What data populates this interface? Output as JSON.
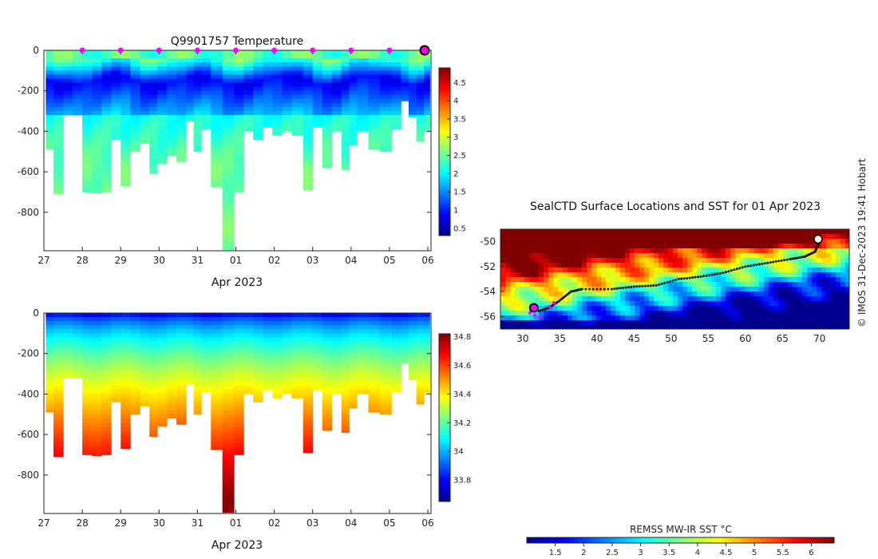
{
  "colors": {
    "temp_scale": [
      "#00008f",
      "#0000ff",
      "#0080ff",
      "#00ffff",
      "#80ff80",
      "#ffff00",
      "#ff8000",
      "#ff0000",
      "#800000"
    ],
    "sst_scale": [
      "#00008f",
      "#0000ff",
      "#0080ff",
      "#00ffff",
      "#80ff80",
      "#ffff00",
      "#ff8000",
      "#ff0000",
      "#800000"
    ],
    "profile_marker": "#ff00ff",
    "track": "#111111"
  },
  "credit": "© IMOS 31-Dec-2023 19:41 Hobart",
  "chart_data": [
    {
      "type": "heatmap",
      "id": "temperature-section",
      "title": "Q9901757  Temperature",
      "xlabel": "Apr 2023",
      "ylabel": "",
      "x_tick_labels": [
        "27",
        "28",
        "29",
        "30",
        "31",
        "01",
        "02",
        "03",
        "04",
        "05",
        "06"
      ],
      "y_ticks": [
        0,
        -200,
        -400,
        -600,
        -800
      ],
      "ylim": [
        -990,
        0
      ],
      "colorbar": {
        "ticks": [
          "0.5",
          "1",
          "1.5",
          "2",
          "2.5",
          "3",
          "3.5",
          "4",
          "4.5"
        ],
        "min": 0.3,
        "max": 4.9
      },
      "profile_marker_days": [
        1,
        2,
        3,
        4,
        5,
        6,
        7,
        8,
        9
      ],
      "highlight_day": 10,
      "profiles": [
        {
          "day": 0.05,
          "max_depth": 490
        },
        {
          "day": 0.25,
          "max_depth": 710
        },
        {
          "day": 0.5,
          "max_depth": 320
        },
        {
          "day": 0.75,
          "max_depth": 320
        },
        {
          "day": 1.0,
          "max_depth": 700
        },
        {
          "day": 1.25,
          "max_depth": 705
        },
        {
          "day": 1.5,
          "max_depth": 700
        },
        {
          "day": 1.75,
          "max_depth": 440
        },
        {
          "day": 2.0,
          "max_depth": 670
        },
        {
          "day": 2.25,
          "max_depth": 500
        },
        {
          "day": 2.5,
          "max_depth": 460
        },
        {
          "day": 2.75,
          "max_depth": 610
        },
        {
          "day": 2.95,
          "max_depth": 560
        },
        {
          "day": 3.2,
          "max_depth": 520
        },
        {
          "day": 3.45,
          "max_depth": 550
        },
        {
          "day": 3.7,
          "max_depth": 350
        },
        {
          "day": 3.9,
          "max_depth": 500
        },
        {
          "day": 4.1,
          "max_depth": 390
        },
        {
          "day": 4.35,
          "max_depth": 675
        },
        {
          "day": 4.65,
          "max_depth": 985
        },
        {
          "day": 4.95,
          "max_depth": 700
        },
        {
          "day": 5.2,
          "max_depth": 400
        },
        {
          "day": 5.45,
          "max_depth": 440
        },
        {
          "day": 5.7,
          "max_depth": 380
        },
        {
          "day": 5.95,
          "max_depth": 420
        },
        {
          "day": 6.2,
          "max_depth": 400
        },
        {
          "day": 6.45,
          "max_depth": 420
        },
        {
          "day": 6.75,
          "max_depth": 690
        },
        {
          "day": 7.0,
          "max_depth": 380
        },
        {
          "day": 7.25,
          "max_depth": 580
        },
        {
          "day": 7.5,
          "max_depth": 400
        },
        {
          "day": 7.75,
          "max_depth": 590
        },
        {
          "day": 7.95,
          "max_depth": 470
        },
        {
          "day": 8.15,
          "max_depth": 400
        },
        {
          "day": 8.45,
          "max_depth": 490
        },
        {
          "day": 8.75,
          "max_depth": 500
        },
        {
          "day": 9.05,
          "max_depth": 390
        },
        {
          "day": 9.3,
          "max_depth": 250
        },
        {
          "day": 9.5,
          "max_depth": 330
        },
        {
          "day": 9.7,
          "max_depth": 450
        },
        {
          "day": 9.9,
          "max_depth": 400
        }
      ]
    },
    {
      "type": "heatmap",
      "id": "salinity-section",
      "title": "",
      "xlabel": "Apr 2023",
      "ylabel": "",
      "x_tick_labels": [
        "27",
        "28",
        "29",
        "30",
        "31",
        "01",
        "02",
        "03",
        "04",
        "05",
        "06"
      ],
      "y_ticks": [
        0,
        -200,
        -400,
        -600,
        -800
      ],
      "ylim": [
        -990,
        0
      ],
      "colorbar": {
        "ticks": [
          "33.8",
          "34",
          "34.2",
          "34.4",
          "34.6",
          "34.8"
        ],
        "min": 33.65,
        "max": 34.82
      }
    },
    {
      "type": "heatmap",
      "id": "sst-map",
      "title": "SealCTD Surface Locations and SST for 01 Apr 2023",
      "xlabel": "",
      "ylabel": "",
      "xlim": [
        27,
        74
      ],
      "ylim": [
        -57,
        -49
      ],
      "x_ticks": [
        30,
        35,
        40,
        45,
        50,
        55,
        60,
        65,
        70
      ],
      "y_ticks": [
        -50,
        -52,
        -54,
        -56
      ],
      "track": [
        [
          70.0,
          -49.9
        ],
        [
          69.4,
          -50.8
        ],
        [
          68.0,
          -51.2
        ],
        [
          66.0,
          -51.4
        ],
        [
          63.0,
          -51.7
        ],
        [
          60.0,
          -52.0
        ],
        [
          57.0,
          -52.5
        ],
        [
          54.0,
          -52.8
        ],
        [
          51.0,
          -53.0
        ],
        [
          48.0,
          -53.5
        ],
        [
          45.0,
          -53.6
        ],
        [
          42.0,
          -53.8
        ],
        [
          38.0,
          -53.8
        ],
        [
          36.5,
          -54.0
        ],
        [
          34.8,
          -54.8
        ],
        [
          33.5,
          -55.3
        ],
        [
          32.0,
          -55.6
        ]
      ],
      "current_position": [
        31.5,
        -55.3
      ],
      "colorbar": {
        "title": "REMSS MW-IR SST °C",
        "ticks": [
          "1.5",
          "2",
          "2.5",
          "3",
          "3.5",
          "4",
          "4.5",
          "5",
          "5.5",
          "6"
        ],
        "min": 1.0,
        "max": 6.4
      }
    }
  ]
}
